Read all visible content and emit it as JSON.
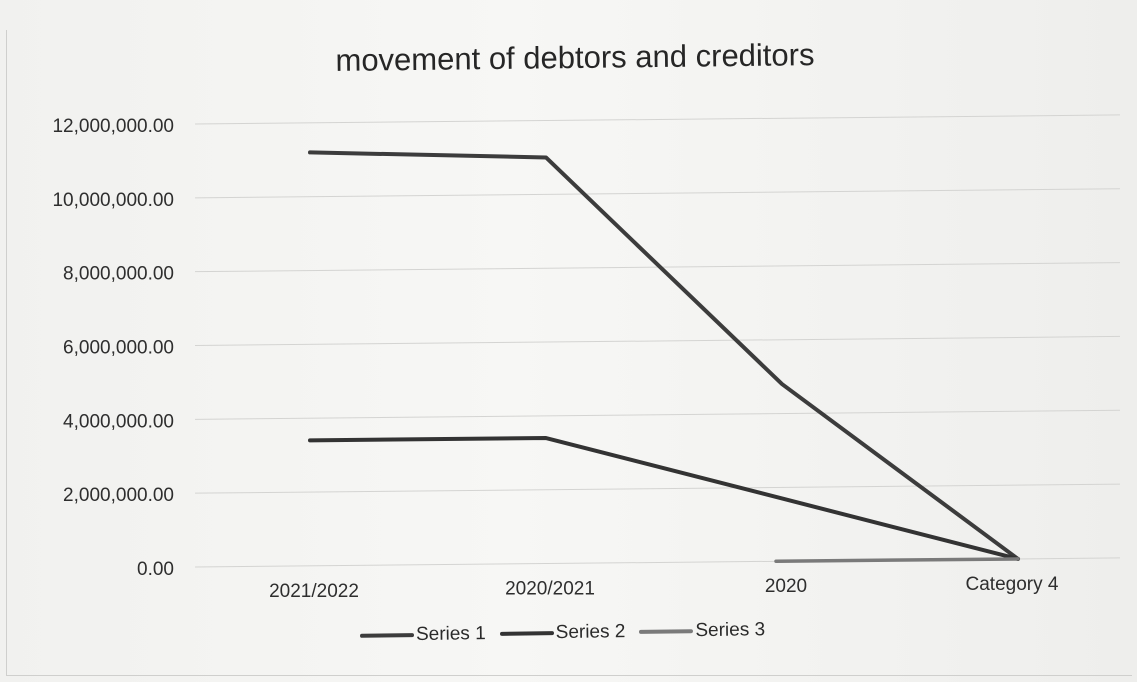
{
  "chart_data": {
    "type": "line",
    "title": "movement of debtors and creditors",
    "categories": [
      "2021/2022",
      "2020/2021",
      "2020",
      "Category 4"
    ],
    "y_tick_labels": [
      "0.00",
      "2,000,000.00",
      "4,000,000.00",
      "6,000,000.00",
      "8,000,000.00",
      "10,000,000.00",
      "12,000,000.00"
    ],
    "ylim": [
      0,
      12000000
    ],
    "y_step": 2000000,
    "grid": true,
    "legend_position": "bottom",
    "series": [
      {
        "name": "Series 1",
        "color": "#3c3c3c",
        "values": [
          11200000,
          11000000,
          4800000,
          0
        ]
      },
      {
        "name": "Series 2",
        "color": "#333333",
        "values": [
          3400000,
          3400000,
          1700000,
          0
        ]
      },
      {
        "name": "Series 3",
        "color": "#7a7a7a",
        "values": [
          null,
          null,
          0,
          0
        ]
      }
    ]
  }
}
